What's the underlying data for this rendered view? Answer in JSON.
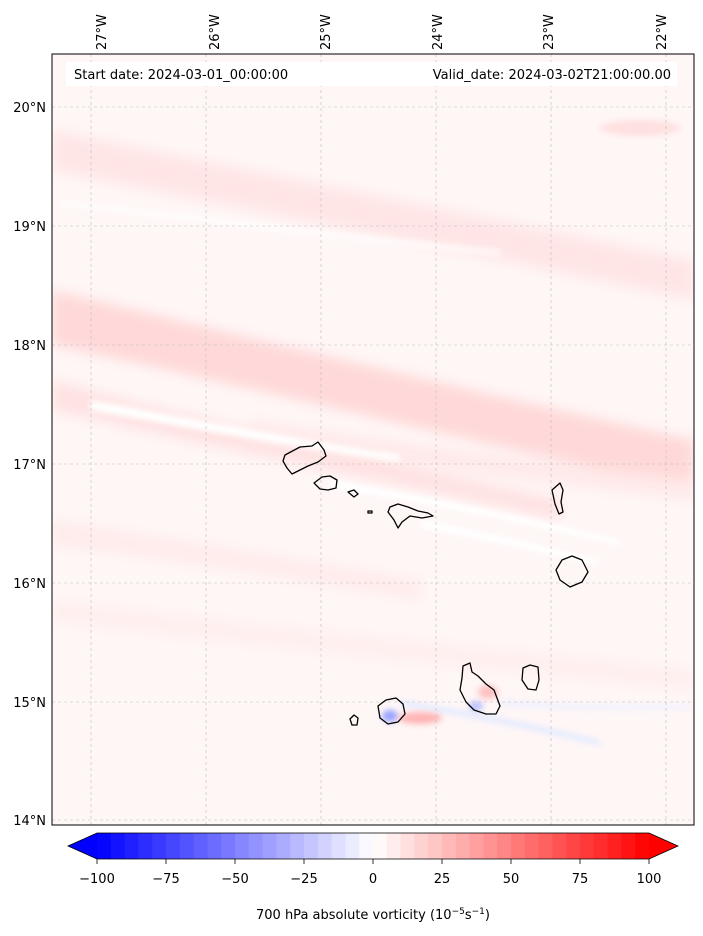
{
  "header": {
    "start_label": "Start date: 2024-03-01_00:00:00",
    "valid_label": "Valid_date: 2024-03-02T21:00:00.00"
  },
  "map": {
    "lon_ticks": [
      "27°W",
      "26°W",
      "25°W",
      "24°W",
      "23°W",
      "22°W"
    ],
    "lat_ticks": [
      "20°N",
      "19°N",
      "18°N",
      "17°N",
      "16°N",
      "15°N",
      "14°N"
    ],
    "gridlines": "dashed",
    "extent": {
      "lon": [
        -27.35,
        -21.75
      ],
      "lat": [
        13.95,
        20.45
      ]
    }
  },
  "colorbar": {
    "ticks": [
      "−100",
      "−75",
      "−50",
      "−25",
      "0",
      "25",
      "50",
      "75",
      "100"
    ],
    "range": [
      -100,
      100
    ],
    "label_main": "700 hPa absolute vorticity (10",
    "label_exp1": "−5",
    "label_mid": "s",
    "label_exp2": "−1",
    "label_end": ")",
    "colors": {
      "min": "#0000ff",
      "mid": "#ffffff",
      "max": "#ff0000"
    },
    "extend": "both"
  }
}
